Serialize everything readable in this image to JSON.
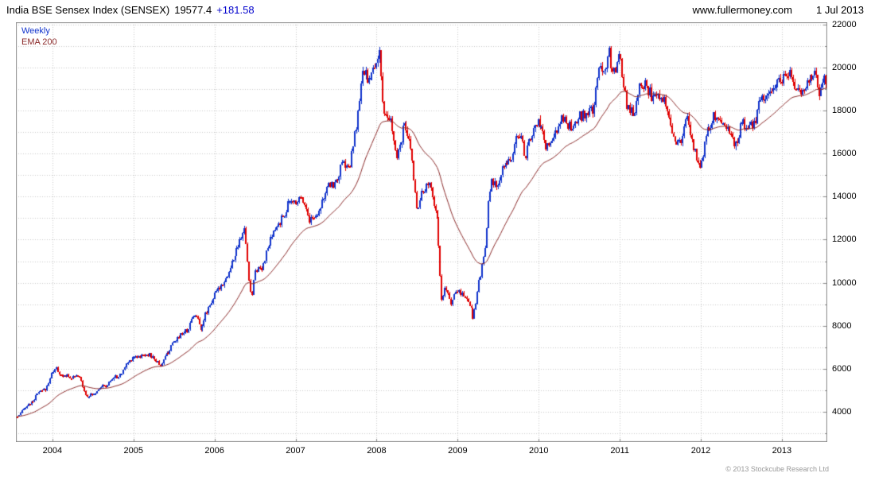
{
  "header": {
    "title": "India BSE Sensex Index (SENSEX)",
    "last_price": "19577.4",
    "change": "+181.58",
    "website": "www.fullermoney.com",
    "date": "1 Jul 2013"
  },
  "legend": {
    "weekly_label": "Weekly",
    "ema_label": "EMA 200"
  },
  "footer": {
    "copyright": "© 2013 Stockcube Research Ltd"
  },
  "colors": {
    "up": "#1133cc",
    "down": "#e00000",
    "ema": "#8b2a2a",
    "grid": "#c9c9c9",
    "border": "#8a8a8a",
    "header_change": "#0000cc",
    "text": "#000000"
  },
  "chart_data": {
    "type": "candlestick",
    "timeframe": "weekly",
    "title": "India BSE Sensex Index (SENSEX)",
    "last_close": 19577.4,
    "change": 181.58,
    "x_range": [
      2003.55,
      2013.56
    ],
    "ylim": [
      2600,
      22100
    ],
    "y_ticks": [
      4000,
      6000,
      8000,
      10000,
      12000,
      14000,
      16000,
      18000,
      20000,
      22000
    ],
    "y_grid_step": 1000,
    "x_ticks": [
      2004,
      2005,
      2006,
      2007,
      2008,
      2009,
      2010,
      2011,
      2012,
      2013
    ],
    "legend_position": "top-left",
    "grid": "dotted",
    "weeks": 522,
    "noise": 0.03,
    "wick": 0.01,
    "ema_weeks": 40,
    "anchors": [
      [
        2003.583,
        3793
      ],
      [
        2003.667,
        4245
      ],
      [
        2003.75,
        4453
      ],
      [
        2003.833,
        4907
      ],
      [
        2003.917,
        5045
      ],
      [
        2004.0,
        5839
      ],
      [
        2004.04,
        6100
      ],
      [
        2004.083,
        5696
      ],
      [
        2004.167,
        5668
      ],
      [
        2004.25,
        5591
      ],
      [
        2004.333,
        5655
      ],
      [
        2004.417,
        4760
      ],
      [
        2004.5,
        4795
      ],
      [
        2004.583,
        5170
      ],
      [
        2004.667,
        5192
      ],
      [
        2004.75,
        5584
      ],
      [
        2004.833,
        5672
      ],
      [
        2004.917,
        6234
      ],
      [
        2005.0,
        6603
      ],
      [
        2005.083,
        6556
      ],
      [
        2005.167,
        6714
      ],
      [
        2005.25,
        6493
      ],
      [
        2005.333,
        6154
      ],
      [
        2005.417,
        6715
      ],
      [
        2005.5,
        7194
      ],
      [
        2005.583,
        7635
      ],
      [
        2005.667,
        7805
      ],
      [
        2005.75,
        8634
      ],
      [
        2005.833,
        7892
      ],
      [
        2005.917,
        8789
      ],
      [
        2006.0,
        9398
      ],
      [
        2006.083,
        9920
      ],
      [
        2006.167,
        10370
      ],
      [
        2006.25,
        11280
      ],
      [
        2006.333,
        12043
      ],
      [
        2006.37,
        12620
      ],
      [
        2006.417,
        10399
      ],
      [
        2006.46,
        9250
      ],
      [
        2006.5,
        10609
      ],
      [
        2006.583,
        10744
      ],
      [
        2006.667,
        11699
      ],
      [
        2006.75,
        12454
      ],
      [
        2006.833,
        12962
      ],
      [
        2006.917,
        13696
      ],
      [
        2007.0,
        13787
      ],
      [
        2007.083,
        14091
      ],
      [
        2007.167,
        12938
      ],
      [
        2007.25,
        13072
      ],
      [
        2007.333,
        13872
      ],
      [
        2007.417,
        14544
      ],
      [
        2007.5,
        14651
      ],
      [
        2007.583,
        15551
      ],
      [
        2007.667,
        15319
      ],
      [
        2007.75,
        17291
      ],
      [
        2007.833,
        19838
      ],
      [
        2007.917,
        19363
      ],
      [
        2008.0,
        20287
      ],
      [
        2008.04,
        20900
      ],
      [
        2008.083,
        17649
      ],
      [
        2008.167,
        17579
      ],
      [
        2008.25,
        15644
      ],
      [
        2008.333,
        17287
      ],
      [
        2008.417,
        16416
      ],
      [
        2008.5,
        13462
      ],
      [
        2008.583,
        14356
      ],
      [
        2008.667,
        14565
      ],
      [
        2008.75,
        12860
      ],
      [
        2008.81,
        8700
      ],
      [
        2008.833,
        9788
      ],
      [
        2008.917,
        9093
      ],
      [
        2009.0,
        9647
      ],
      [
        2009.083,
        9424
      ],
      [
        2009.167,
        8892
      ],
      [
        2009.19,
        8350
      ],
      [
        2009.25,
        9709
      ],
      [
        2009.333,
        11403
      ],
      [
        2009.345,
        11950
      ],
      [
        2009.385,
        13900
      ],
      [
        2009.417,
        14625
      ],
      [
        2009.5,
        14494
      ],
      [
        2009.583,
        15670
      ],
      [
        2009.667,
        15667
      ],
      [
        2009.75,
        17127
      ],
      [
        2009.833,
        15896
      ],
      [
        2009.917,
        16926
      ],
      [
        2010.0,
        17465
      ],
      [
        2010.083,
        16358
      ],
      [
        2010.167,
        16430
      ],
      [
        2010.25,
        17528
      ],
      [
        2010.333,
        17559
      ],
      [
        2010.417,
        16945
      ],
      [
        2010.5,
        17701
      ],
      [
        2010.583,
        17868
      ],
      [
        2010.667,
        17971
      ],
      [
        2010.75,
        20069
      ],
      [
        2010.833,
        20032
      ],
      [
        2010.87,
        21000
      ],
      [
        2010.917,
        19521
      ],
      [
        2011.0,
        20509
      ],
      [
        2011.083,
        18328
      ],
      [
        2011.167,
        17823
      ],
      [
        2011.25,
        19445
      ],
      [
        2011.333,
        19136
      ],
      [
        2011.417,
        18503
      ],
      [
        2011.5,
        18846
      ],
      [
        2011.583,
        18197
      ],
      [
        2011.667,
        16677
      ],
      [
        2011.75,
        16454
      ],
      [
        2011.833,
        17705
      ],
      [
        2011.917,
        16123
      ],
      [
        2012.0,
        15455
      ],
      [
        2012.083,
        17194
      ],
      [
        2012.167,
        17753
      ],
      [
        2012.25,
        17404
      ],
      [
        2012.333,
        17319
      ],
      [
        2012.417,
        16219
      ],
      [
        2012.5,
        17430
      ],
      [
        2012.583,
        17236
      ],
      [
        2012.667,
        17430
      ],
      [
        2012.75,
        18763
      ],
      [
        2012.833,
        18505
      ],
      [
        2012.917,
        19340
      ],
      [
        2013.0,
        19427
      ],
      [
        2013.083,
        19895
      ],
      [
        2013.167,
        18862
      ],
      [
        2013.25,
        18836
      ],
      [
        2013.333,
        19504
      ],
      [
        2013.417,
        19760
      ],
      [
        2013.46,
        18700
      ],
      [
        2013.5,
        19396
      ],
      [
        2013.56,
        19577
      ]
    ]
  }
}
